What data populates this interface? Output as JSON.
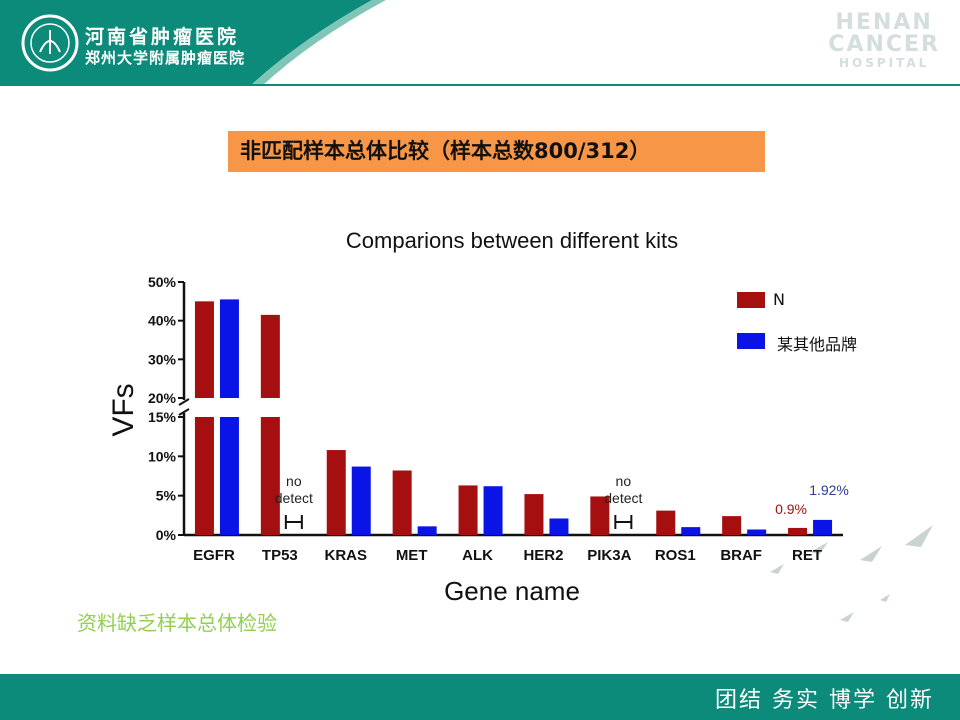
{
  "header": {
    "logo_line1": "河南省肿瘤医院",
    "logo_line2": "郑州大学附属肿瘤医院",
    "watermark": [
      "HENAN",
      "CANCER",
      "HOSPITAL"
    ],
    "band_color": "#0c8a7a"
  },
  "slide_title": "非匹配样本总体比较（样本总数800/312）",
  "note": "资料缺乏样本总体检验",
  "footer": {
    "slogan": "团结  务实  博学  创新"
  },
  "chart_data": {
    "type": "bar",
    "title": "Comparions between different kits",
    "xlabel": "Gene name",
    "ylabel": "VFs",
    "categories": [
      "EGFR",
      "TP53",
      "KRAS",
      "MET",
      "ALK",
      "HER2",
      "PIK3A",
      "ROS1",
      "BRAF",
      "RET"
    ],
    "series": [
      {
        "name": "N",
        "color": "#a50f0f",
        "values": [
          45,
          41.5,
          10.8,
          8.2,
          6.3,
          5.2,
          4.9,
          3.1,
          2.4,
          0.9
        ]
      },
      {
        "name": "某其他品牌",
        "color": "#0a14e6",
        "values": [
          45.5,
          null,
          8.7,
          1.1,
          6.2,
          2.1,
          null,
          1.0,
          0.7,
          1.92
        ]
      }
    ],
    "y_axis": {
      "broken": true,
      "lower_range": [
        0,
        15
      ],
      "upper_range": [
        20,
        50
      ],
      "tick_labels": [
        "0%",
        "5%",
        "10%",
        "15%",
        "20%",
        "30%",
        "40%",
        "50%"
      ],
      "tick_values": [
        0,
        5,
        10,
        15,
        20,
        30,
        40,
        50
      ]
    },
    "annotations": [
      {
        "category": "TP53",
        "text": [
          "no",
          "detect"
        ]
      },
      {
        "category": "PIK3A",
        "text": [
          "no",
          "detect"
        ]
      },
      {
        "category": "RET",
        "series": "N",
        "text": "0.9%",
        "color": "#a50f0f"
      },
      {
        "category": "RET",
        "series": "某其他品牌",
        "text": "1.92%",
        "color": "#2b3a9b"
      }
    ],
    "legend_position": "top-right",
    "grid": false
  }
}
